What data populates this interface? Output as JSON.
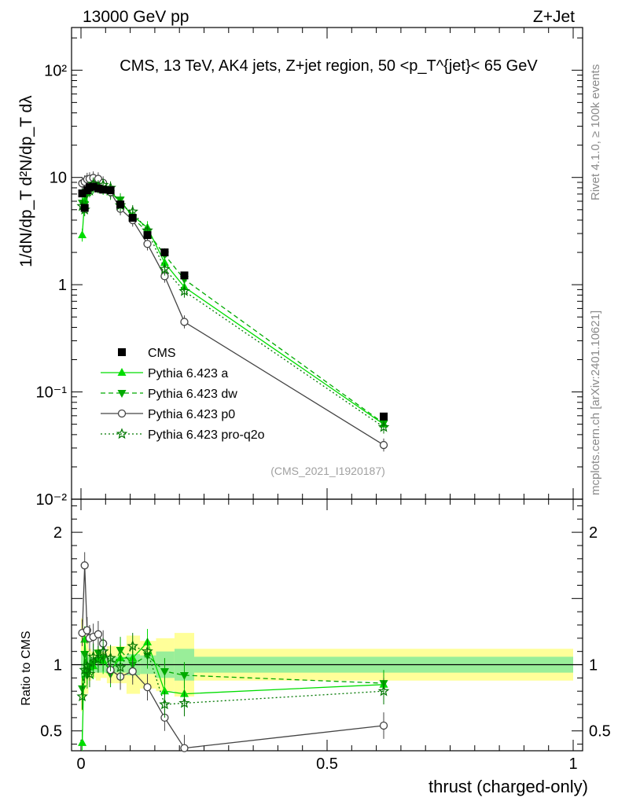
{
  "header": {
    "left": "13000 GeV pp",
    "right": "Z+Jet"
  },
  "side_text": {
    "top": "Rivet 4.1.0, ≥ 100k events",
    "bottom": "mcplots.cern.ch [arXiv:2401.10621]"
  },
  "chart_data": [
    {
      "type": "line",
      "panel": "main",
      "title": "CMS, 13 TeV, AK4 jets, Z+jet region, 50 <p_T^{jet}< 65 GeV",
      "ylabel": "1/dN/dp_T d²N/dp_T dλ",
      "yscale": "log",
      "ylim": [
        0.01,
        250
      ],
      "xlim": [
        -0.01,
        1.0
      ],
      "y_ticks": [
        {
          "v": 0.01,
          "label": "10⁻²"
        },
        {
          "v": 0.1,
          "label": "10⁻¹"
        },
        {
          "v": 1,
          "label": "1"
        },
        {
          "v": 10,
          "label": "10"
        },
        {
          "v": 100,
          "label": "10²"
        }
      ],
      "watermark": "(CMS_2021_I1920187)",
      "x": [
        0.0025,
        0.0075,
        0.0125,
        0.0175,
        0.025,
        0.035,
        0.045,
        0.06,
        0.08,
        0.105,
        0.135,
        0.17,
        0.21,
        0.615
      ],
      "series": [
        {
          "name": "CMS",
          "style": "data",
          "color": "#000000",
          "values": [
            7.1,
            5.2,
            7.6,
            8.1,
            8.2,
            7.9,
            7.7,
            7.6,
            5.6,
            4.2,
            2.9,
            2.0,
            1.22,
            0.059
          ]
        },
        {
          "name": "Pythia 6.423 a",
          "style": "solid",
          "marker": "triangle-up",
          "color": "#00dd00",
          "values": [
            2.9,
            6.2,
            7.2,
            7.9,
            8.1,
            8.2,
            7.9,
            7.3,
            5.9,
            4.4,
            3.4,
            1.6,
            0.95,
            0.05
          ]
        },
        {
          "name": "Pythia 6.423 dw",
          "style": "dashed",
          "marker": "triangle-down",
          "color": "#00aa00",
          "values": [
            5.8,
            5.6,
            7.0,
            8.0,
            8.3,
            8.6,
            8.1,
            7.1,
            6.2,
            4.2,
            3.1,
            1.9,
            1.12,
            0.051
          ]
        },
        {
          "name": "Pythia 6.423 p0",
          "style": "solid",
          "marker": "circle",
          "color": "#444444",
          "values": [
            8.8,
            9.1,
            9.6,
            9.7,
            9.9,
            9.7,
            8.9,
            7.3,
            5.1,
            4.0,
            2.4,
            1.2,
            0.45,
            0.032
          ]
        },
        {
          "name": "Pythia 6.423 pro-q2o",
          "style": "dotted",
          "marker": "star",
          "color": "#007700",
          "values": [
            5.4,
            5.0,
            7.5,
            7.5,
            8.7,
            8.2,
            8.5,
            8.0,
            5.5,
            4.8,
            3.2,
            1.4,
            0.87,
            0.047
          ]
        }
      ]
    },
    {
      "type": "line",
      "panel": "ratio",
      "ylabel": "Ratio to CMS",
      "xlabel": "thrust (charged-only)",
      "ylim": [
        0.35,
        2.25
      ],
      "xlim": [
        -0.01,
        1.0
      ],
      "x_ticks": [
        {
          "v": 0,
          "label": "0"
        },
        {
          "v": 0.5,
          "label": "0.5"
        },
        {
          "v": 1,
          "label": "1"
        }
      ],
      "y_ticks": [
        {
          "v": 0.5,
          "label": "0.5"
        },
        {
          "v": 1,
          "label": "1"
        },
        {
          "v": 2,
          "label": "2"
        }
      ],
      "x": [
        0.0025,
        0.0075,
        0.0125,
        0.0175,
        0.025,
        0.035,
        0.045,
        0.06,
        0.08,
        0.105,
        0.135,
        0.17,
        0.21,
        0.615
      ],
      "series": [
        {
          "name": "Pythia 6.423 a",
          "values": [
            0.41,
            1.19,
            0.95,
            0.98,
            0.99,
            1.04,
            1.03,
            0.96,
            1.05,
            1.05,
            1.17,
            0.8,
            0.78,
            0.85
          ]
        },
        {
          "name": "Pythia 6.423 dw",
          "values": [
            0.82,
            1.08,
            0.92,
            0.99,
            1.01,
            1.09,
            1.05,
            0.93,
            1.11,
            1.0,
            1.07,
            0.95,
            0.92,
            0.86
          ]
        },
        {
          "name": "Pythia 6.423 p0",
          "values": [
            1.24,
            1.75,
            1.26,
            1.2,
            1.21,
            1.23,
            1.16,
            0.96,
            0.91,
            0.95,
            0.83,
            0.6,
            0.37,
            0.54
          ]
        },
        {
          "name": "Pythia 6.423 pro-q2o",
          "values": [
            0.76,
            0.96,
            0.99,
            0.93,
            1.06,
            1.04,
            1.1,
            1.05,
            0.98,
            1.14,
            1.1,
            0.7,
            0.71,
            0.8
          ]
        }
      ]
    }
  ]
}
